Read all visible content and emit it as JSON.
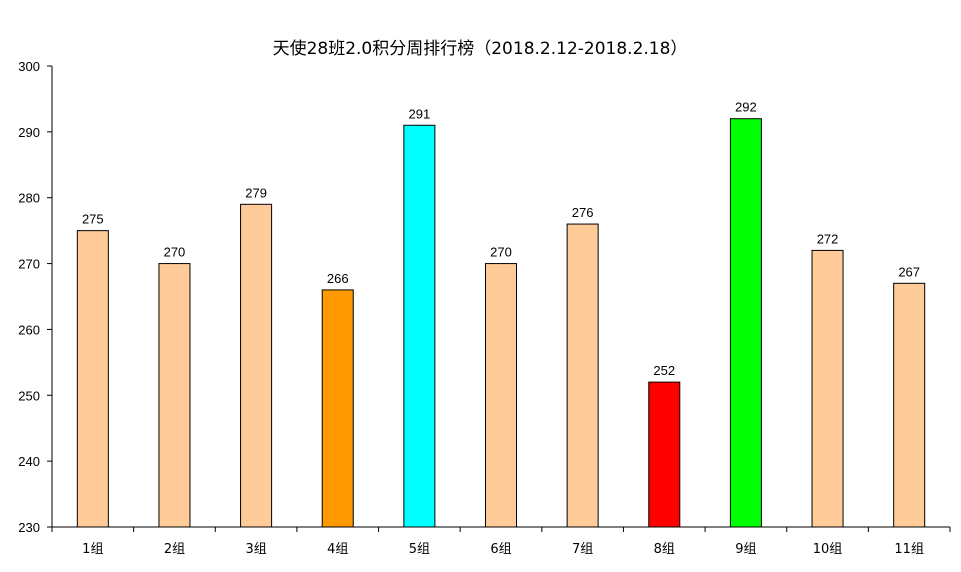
{
  "chart_data": {
    "type": "bar",
    "title": "天使28班2.0积分周排行榜（2018.2.12-2018.2.18）",
    "xlabel": "",
    "ylabel": "",
    "ylim": [
      230,
      300
    ],
    "yticks": [
      230,
      240,
      250,
      260,
      270,
      280,
      290,
      300
    ],
    "grid": false,
    "legend": "none",
    "categories": [
      "1组",
      "2组",
      "3组",
      "4组",
      "5组",
      "6组",
      "7组",
      "8组",
      "9组",
      "10组",
      "11组"
    ],
    "values": [
      275,
      270,
      279,
      266,
      291,
      270,
      276,
      252,
      292,
      272,
      267
    ],
    "colors": [
      "#FFCC99",
      "#FFCC99",
      "#FFCC99",
      "#FF9900",
      "#00FFFF",
      "#FFCC99",
      "#FFCC99",
      "#FF0000",
      "#00FF00",
      "#FFCC99",
      "#FFCC99"
    ],
    "data_labels": [
      "275",
      "270",
      "279",
      "266",
      "291",
      "270",
      "276",
      "252",
      "292",
      "272",
      "267"
    ]
  }
}
